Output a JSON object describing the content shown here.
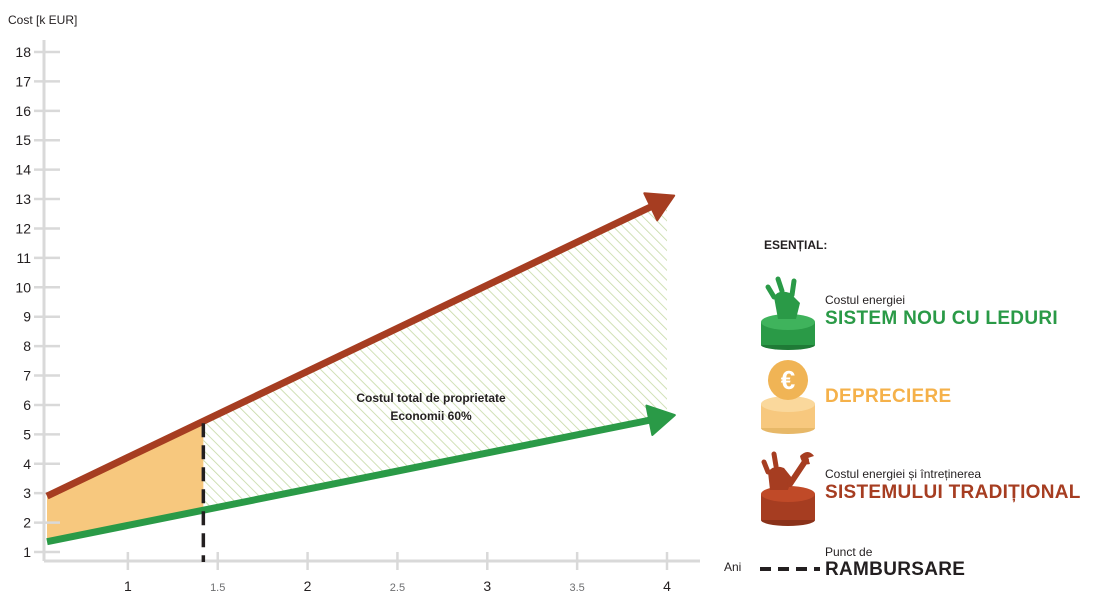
{
  "chart_data": {
    "type": "line",
    "ylabel": "Cost [k EUR]",
    "xlabel": "Ani",
    "ylim": [
      1,
      18
    ],
    "xlim": [
      0.55,
      4
    ],
    "y_ticks": [
      1,
      2,
      3,
      4,
      5,
      6,
      7,
      8,
      9,
      10,
      11,
      12,
      13,
      14,
      15,
      16,
      17,
      18
    ],
    "x_ticks": [
      {
        "value": 1,
        "label": "1"
      },
      {
        "value": 1.5,
        "label": "1.5"
      },
      {
        "value": 2,
        "label": "2"
      },
      {
        "value": 2.5,
        "label": "2.5"
      },
      {
        "value": 3,
        "label": "3"
      },
      {
        "value": 3.5,
        "label": "3.5"
      },
      {
        "value": 4,
        "label": "4"
      }
    ],
    "series": [
      {
        "name": "SISTEMULUI TRADIȚIONAL",
        "color": "#a63d21",
        "x": [
          0.55,
          4.0
        ],
        "y": [
          2.9,
          13.0
        ]
      },
      {
        "name": "SISTEM NOU CU LEDURI",
        "color": "#2a9a47",
        "x": [
          0.55,
          4.0
        ],
        "y": [
          1.35,
          5.6
        ]
      }
    ],
    "payback_x": 1.42,
    "annotation": {
      "line1": "Costul total de proprietate",
      "line2": "Economii 60%"
    },
    "colors": {
      "depreciation": "#f7c87e",
      "hatch": "#c5d9a4",
      "axis": "#d9d9d9",
      "payback": "#231f20"
    }
  },
  "legend": {
    "title": "ESENȚIAL:",
    "items": [
      {
        "small": "Costul energiei",
        "big": "SISTEM NOU CU LEDURI",
        "color": "#2a9a47",
        "icon": "plug-icon"
      },
      {
        "small": "",
        "big": "DEPRECIERE",
        "color": "#f5b14a",
        "icon": "euro-coin-icon"
      },
      {
        "small": "Costul energiei și întreținerea",
        "big": "SISTEMULUI TRADIȚIONAL",
        "color": "#a63d21",
        "icon": "wrench-plug-icon"
      }
    ],
    "payback": {
      "small": "Punct de",
      "big": "RAMBURSARE"
    }
  }
}
